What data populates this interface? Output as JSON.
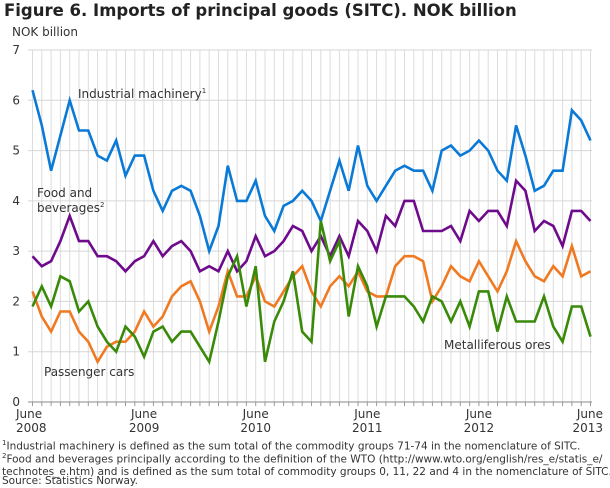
{
  "title": "Figure 6. Imports of principal goods (SITC). NOK billion",
  "chart_data": {
    "type": "line",
    "title": "Figure 6. Imports of principal goods (SITC). NOK billion",
    "ylabel": "NOK billion",
    "ylim": [
      0,
      7
    ],
    "yticks": [
      "0",
      "1",
      "2",
      "3",
      "4",
      "5",
      "6",
      "7"
    ],
    "x_start": "2008-06",
    "x_end": "2013-06",
    "frequency": "monthly",
    "xtick_labels": [
      [
        "June",
        "2008"
      ],
      [
        "June",
        "2009"
      ],
      [
        "June",
        "2010"
      ],
      [
        "June",
        "2011"
      ],
      [
        "June",
        "2012"
      ],
      [
        "June",
        "2013"
      ]
    ],
    "grid": true,
    "series": [
      {
        "name": "Industrial machinery",
        "footnote": "1",
        "color": "#0a7ad6",
        "values": [
          6.2,
          5.5,
          4.6,
          5.3,
          6.0,
          5.4,
          5.4,
          4.9,
          4.8,
          5.2,
          4.5,
          4.9,
          4.9,
          4.2,
          3.8,
          4.2,
          4.3,
          4.2,
          3.7,
          3.0,
          3.5,
          4.7,
          4.0,
          4.0,
          4.4,
          3.7,
          3.4,
          3.9,
          4.0,
          4.2,
          4.0,
          3.6,
          4.2,
          4.8,
          4.2,
          5.1,
          4.3,
          4.0,
          4.3,
          4.6,
          4.7,
          4.6,
          4.6,
          4.2,
          5.0,
          5.1,
          4.9,
          5.0,
          5.2,
          5.0,
          4.6,
          4.4,
          5.5,
          4.9,
          4.2,
          4.3,
          4.6,
          4.6,
          5.8,
          5.6,
          5.2
        ]
      },
      {
        "name": "Food and beverages",
        "footnote": "2",
        "color": "#6e0b8c",
        "values": [
          2.9,
          2.7,
          2.8,
          3.2,
          3.7,
          3.2,
          3.2,
          2.9,
          2.9,
          2.8,
          2.6,
          2.8,
          2.9,
          3.2,
          2.9,
          3.1,
          3.2,
          3.0,
          2.6,
          2.7,
          2.6,
          3.0,
          2.6,
          2.8,
          3.3,
          2.9,
          3.0,
          3.2,
          3.5,
          3.4,
          3.0,
          3.3,
          2.9,
          3.3,
          2.9,
          3.6,
          3.4,
          3.0,
          3.7,
          3.5,
          4.0,
          4.0,
          3.4,
          3.4,
          3.4,
          3.5,
          3.2,
          3.8,
          3.6,
          3.8,
          3.8,
          3.5,
          4.4,
          4.2,
          3.4,
          3.6,
          3.5,
          3.1,
          3.8,
          3.8,
          3.6
        ]
      },
      {
        "name": "Passenger cars",
        "footnote": "",
        "color": "#f07a22",
        "values": [
          2.2,
          1.7,
          1.4,
          1.8,
          1.8,
          1.4,
          1.2,
          0.8,
          1.1,
          1.2,
          1.2,
          1.4,
          1.8,
          1.5,
          1.7,
          2.1,
          2.3,
          2.4,
          2.0,
          1.4,
          1.9,
          2.6,
          2.1,
          2.1,
          2.5,
          2.0,
          1.9,
          2.2,
          2.5,
          2.7,
          2.2,
          1.9,
          2.3,
          2.5,
          2.3,
          2.6,
          2.2,
          2.1,
          2.1,
          2.7,
          2.9,
          2.9,
          2.8,
          2.0,
          2.3,
          2.7,
          2.5,
          2.4,
          2.8,
          2.5,
          2.2,
          2.6,
          3.2,
          2.8,
          2.5,
          2.4,
          2.7,
          2.5,
          3.1,
          2.5,
          2.6
        ]
      },
      {
        "name": "Metalliferous ores",
        "footnote": "",
        "color": "#3a8a0a",
        "values": [
          1.9,
          2.3,
          1.9,
          2.5,
          2.4,
          1.8,
          2.0,
          1.5,
          1.2,
          1.0,
          1.5,
          1.3,
          0.9,
          1.4,
          1.5,
          1.2,
          1.4,
          1.4,
          1.1,
          0.8,
          1.6,
          2.5,
          2.9,
          1.9,
          2.7,
          0.8,
          1.6,
          2.0,
          2.6,
          1.4,
          1.2,
          3.6,
          2.8,
          3.2,
          1.7,
          2.7,
          2.3,
          1.5,
          2.1,
          2.1,
          2.1,
          1.9,
          1.6,
          2.1,
          2.0,
          1.6,
          2.0,
          1.5,
          2.2,
          2.2,
          1.4,
          2.1,
          1.6,
          1.6,
          1.6,
          2.1,
          1.5,
          1.2,
          1.9,
          1.9,
          1.3
        ]
      }
    ],
    "annotations": {
      "industrial": "Industrial machinery",
      "food_line1": "Food and",
      "food_line2": "beverages",
      "cars": "Passenger cars",
      "ores": "Metalliferous ores"
    }
  },
  "footnotes": {
    "note1_mark": "1",
    "note1": "Industrial machinery is defined as the sum total of the commodity groups 71-74 in the nomenclature of SITC.",
    "note2_mark": "2",
    "note2_line1": "Food and beverages principally according to the definition of the WTO (http://www.wto.org/english/res_e/statis_e/",
    "note2_line2": "technotes_e.htm) and is defined as the sum total of commodity groups 0, 11, 22 and 4 in the nomenclature of SITC.",
    "source": "Source: Statistics Norway."
  }
}
